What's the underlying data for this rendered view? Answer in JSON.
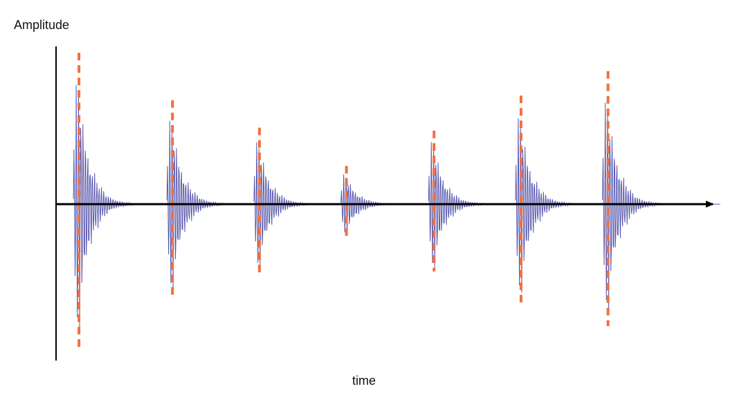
{
  "chart_data": {
    "type": "line",
    "title": "",
    "xlabel": "time",
    "ylabel": "Amplitude",
    "xlim": [
      0,
      1
    ],
    "ylim": [
      -1,
      1
    ],
    "grid": false,
    "legend": "none",
    "series": [
      {
        "style": "waveform",
        "color": "#3a3aa0",
        "bursts": [
          {
            "t": 0.035,
            "amplitude": 1.0
          },
          {
            "t": 0.178,
            "amplitude": 0.7
          },
          {
            "t": 0.311,
            "amplitude": 0.52
          },
          {
            "t": 0.444,
            "amplitude": 0.25
          },
          {
            "t": 0.578,
            "amplitude": 0.52
          },
          {
            "t": 0.711,
            "amplitude": 0.72
          },
          {
            "t": 0.844,
            "amplitude": 0.85
          }
        ]
      },
      {
        "style": "dashed-stems",
        "color": "#f07040",
        "peaks": [
          {
            "t": 0.035,
            "top": 0.99,
            "bottom": -0.92
          },
          {
            "t": 0.178,
            "top": 0.68,
            "bottom": -0.6
          },
          {
            "t": 0.311,
            "top": 0.5,
            "bottom": -0.46
          },
          {
            "t": 0.444,
            "top": 0.25,
            "bottom": -0.21
          },
          {
            "t": 0.578,
            "top": 0.48,
            "bottom": -0.43
          },
          {
            "t": 0.711,
            "top": 0.71,
            "bottom": -0.65
          },
          {
            "t": 0.844,
            "top": 0.87,
            "bottom": -0.78
          }
        ]
      }
    ]
  }
}
